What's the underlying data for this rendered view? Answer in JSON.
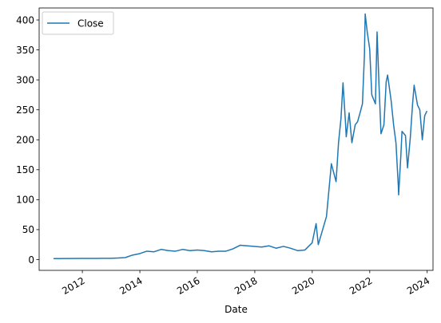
{
  "chart_data": {
    "type": "line",
    "title": "",
    "xlabel": "Date",
    "ylabel": "",
    "xlim": [
      "2010-07-01",
      "2024-03-15"
    ],
    "ylim": [
      -18,
      420
    ],
    "grid": false,
    "legend_position": "top-left",
    "x_ticks": [
      "2012",
      "2014",
      "2016",
      "2018",
      "2020",
      "2022",
      "2024"
    ],
    "y_ticks": [
      0,
      50,
      100,
      150,
      200,
      250,
      300,
      350,
      400
    ],
    "series": [
      {
        "name": "Close",
        "color": "#1f77b4",
        "points": [
          [
            "2010-12-31",
            1.7
          ],
          [
            "2011-06-30",
            1.8
          ],
          [
            "2011-12-30",
            1.9
          ],
          [
            "2012-06-29",
            2.0
          ],
          [
            "2012-12-31",
            2.2
          ],
          [
            "2013-03-28",
            2.6
          ],
          [
            "2013-06-28",
            3.3
          ],
          [
            "2013-09-30",
            7.5
          ],
          [
            "2013-12-31",
            10.0
          ],
          [
            "2014-03-31",
            14.0
          ],
          [
            "2014-06-30",
            13.0
          ],
          [
            "2014-09-30",
            17.0
          ],
          [
            "2014-12-31",
            15.0
          ],
          [
            "2015-03-31",
            14.0
          ],
          [
            "2015-06-30",
            17.0
          ],
          [
            "2015-09-30",
            15.0
          ],
          [
            "2015-12-31",
            16.0
          ],
          [
            "2016-03-31",
            15.0
          ],
          [
            "2016-06-30",
            13.0
          ],
          [
            "2016-09-30",
            14.0
          ],
          [
            "2016-12-30",
            14.0
          ],
          [
            "2017-03-31",
            18.0
          ],
          [
            "2017-06-30",
            24.0
          ],
          [
            "2017-09-29",
            23.0
          ],
          [
            "2017-12-29",
            22.0
          ],
          [
            "2018-03-29",
            21.0
          ],
          [
            "2018-06-29",
            23.0
          ],
          [
            "2018-09-28",
            19.0
          ],
          [
            "2018-12-31",
            22.0
          ],
          [
            "2019-03-29",
            19.0
          ],
          [
            "2019-06-28",
            15.0
          ],
          [
            "2019-09-30",
            16.0
          ],
          [
            "2019-12-31",
            28.0
          ],
          [
            "2020-02-19",
            60.0
          ],
          [
            "2020-03-18",
            25.0
          ],
          [
            "2020-06-30",
            72.0
          ],
          [
            "2020-08-31",
            160.0
          ],
          [
            "2020-09-30",
            145.0
          ],
          [
            "2020-10-30",
            130.0
          ],
          [
            "2020-11-30",
            195.0
          ],
          [
            "2020-12-31",
            235.0
          ],
          [
            "2021-01-26",
            295.0
          ],
          [
            "2021-02-26",
            230.0
          ],
          [
            "2021-03-08",
            205.0
          ],
          [
            "2021-04-14",
            245.0
          ],
          [
            "2021-05-19",
            195.0
          ],
          [
            "2021-06-30",
            225.0
          ],
          [
            "2021-07-30",
            230.0
          ],
          [
            "2021-08-31",
            245.0
          ],
          [
            "2021-09-30",
            260.0
          ],
          [
            "2021-10-25",
            340.0
          ],
          [
            "2021-11-04",
            410.0
          ],
          [
            "2021-11-30",
            380.0
          ],
          [
            "2021-12-31",
            352.0
          ],
          [
            "2022-01-27",
            275.0
          ],
          [
            "2022-03-14",
            260.0
          ],
          [
            "2022-04-04",
            380.0
          ],
          [
            "2022-04-29",
            290.0
          ],
          [
            "2022-05-24",
            210.0
          ],
          [
            "2022-06-30",
            225.0
          ],
          [
            "2022-07-29",
            297.0
          ],
          [
            "2022-08-16",
            308.0
          ],
          [
            "2022-09-30",
            265.0
          ],
          [
            "2022-10-31",
            225.0
          ],
          [
            "2022-11-30",
            195.0
          ],
          [
            "2022-12-30",
            123.0
          ],
          [
            "2023-01-03",
            108.0
          ],
          [
            "2023-01-31",
            173.0
          ],
          [
            "2023-02-15",
            214.0
          ],
          [
            "2023-03-31",
            207.0
          ],
          [
            "2023-04-26",
            153.0
          ],
          [
            "2023-05-31",
            203.0
          ],
          [
            "2023-06-30",
            261.0
          ],
          [
            "2023-07-19",
            291.0
          ],
          [
            "2023-08-31",
            258.0
          ],
          [
            "2023-09-29",
            250.0
          ],
          [
            "2023-10-31",
            200.0
          ],
          [
            "2023-11-30",
            240.0
          ],
          [
            "2023-12-29",
            248.0
          ]
        ]
      }
    ]
  }
}
